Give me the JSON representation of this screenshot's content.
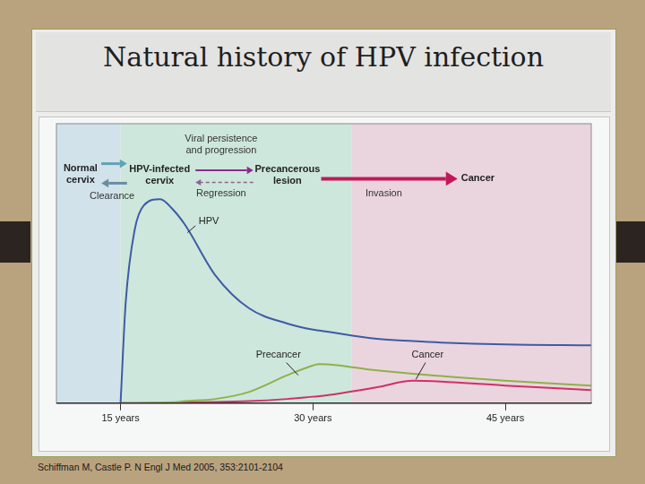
{
  "chart_data": {
    "type": "line",
    "title": "Natural history of HPV infection",
    "source": "Schiffman M, Castle P. N Engl J Med 2005, 353:2101-2104",
    "annotations": [
      "Normal cervix",
      "Clearance",
      "HPV-infected cervix",
      "Viral persistence and progression",
      "Regression",
      "Precancerous lesion",
      "Invasion",
      "Cancer"
    ],
    "x": [
      15,
      15.4,
      16.1,
      16.8,
      18.1,
      19,
      20,
      22.4,
      25,
      28,
      30,
      30.5,
      35,
      37.8,
      40,
      45,
      51.7
    ],
    "series": [
      {
        "name": "HPV",
        "color": "#3e5ba6",
        "values": [
          0,
          36,
          62,
          70.7,
          73,
          69.7,
          64,
          45.7,
          34,
          28.5,
          26.3,
          26,
          23,
          22.2,
          21.7,
          21,
          20.7
        ]
      },
      {
        "name": "Precancer",
        "color": "#8fb04a",
        "values": [
          0,
          0,
          0,
          0.1,
          0.2,
          0.3,
          0.7,
          1.5,
          4,
          10,
          13.5,
          14,
          11.7,
          10.5,
          9.7,
          8,
          6.3
        ]
      },
      {
        "name": "Cancer",
        "color": "#d0306a",
        "values": [
          0,
          0,
          0,
          0,
          0,
          0.1,
          0.3,
          0.4,
          0.7,
          1.5,
          2.3,
          2.5,
          5.7,
          8,
          7.7,
          6.3,
          4.7
        ]
      }
    ],
    "regions": [
      {
        "from": 10,
        "to": 15,
        "color": "#d2e2ea"
      },
      {
        "from": 15,
        "to": 33,
        "color": "#cde7dc"
      },
      {
        "from": 33,
        "to": 51.7,
        "color": "#ead5de"
      }
    ],
    "xlim": [
      10,
      51.7
    ],
    "xticks": [
      {
        "value": 15,
        "label": "15 years"
      },
      {
        "value": 30,
        "label": "30 years"
      },
      {
        "value": 45,
        "label": "45 years"
      }
    ],
    "ylim": [
      0,
      100
    ],
    "tick_labels": "x",
    "grid": false
  }
}
